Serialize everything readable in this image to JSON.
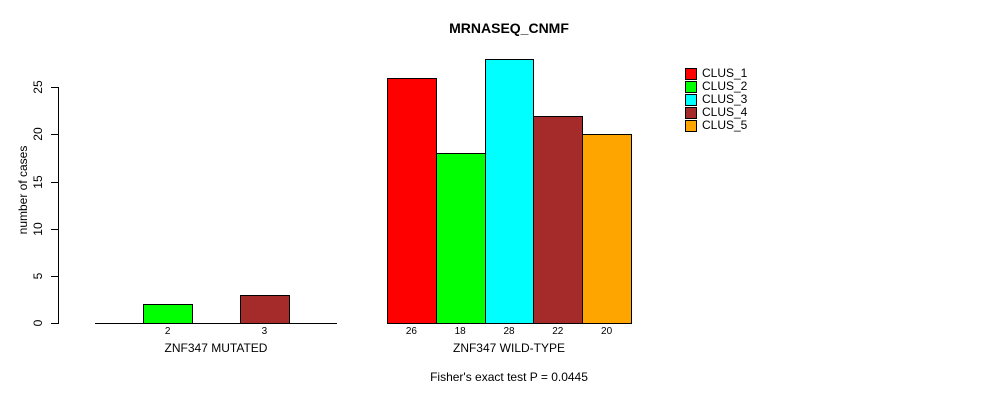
{
  "chart_data": {
    "type": "bar",
    "title": "MRNASEQ_CNMF",
    "ylabel": "number of cases",
    "xlabel": "",
    "ylim": [
      0,
      28
    ],
    "yticks": [
      0,
      5,
      10,
      15,
      20,
      25
    ],
    "grid": false,
    "legend_position": "right",
    "legend": [
      {
        "name": "CLUS_1",
        "color": "#FF0000"
      },
      {
        "name": "CLUS_2",
        "color": "#00FF00"
      },
      {
        "name": "CLUS_3",
        "color": "#00FFFF"
      },
      {
        "name": "CLUS_4",
        "color": "#A52A2A"
      },
      {
        "name": "CLUS_5",
        "color": "#FFA500"
      }
    ],
    "groups": [
      {
        "label": "ZNF347 MUTATED",
        "values": [
          0,
          2,
          0,
          3,
          0
        ],
        "bar_labels": [
          "",
          "2",
          "",
          "3",
          ""
        ]
      },
      {
        "label": "ZNF347 WILD-TYPE",
        "values": [
          26,
          18,
          28,
          22,
          20
        ],
        "bar_labels": [
          "26",
          "18",
          "28",
          "22",
          "20"
        ]
      }
    ],
    "annotation": "Fisher's exact test P = 0.0445"
  }
}
